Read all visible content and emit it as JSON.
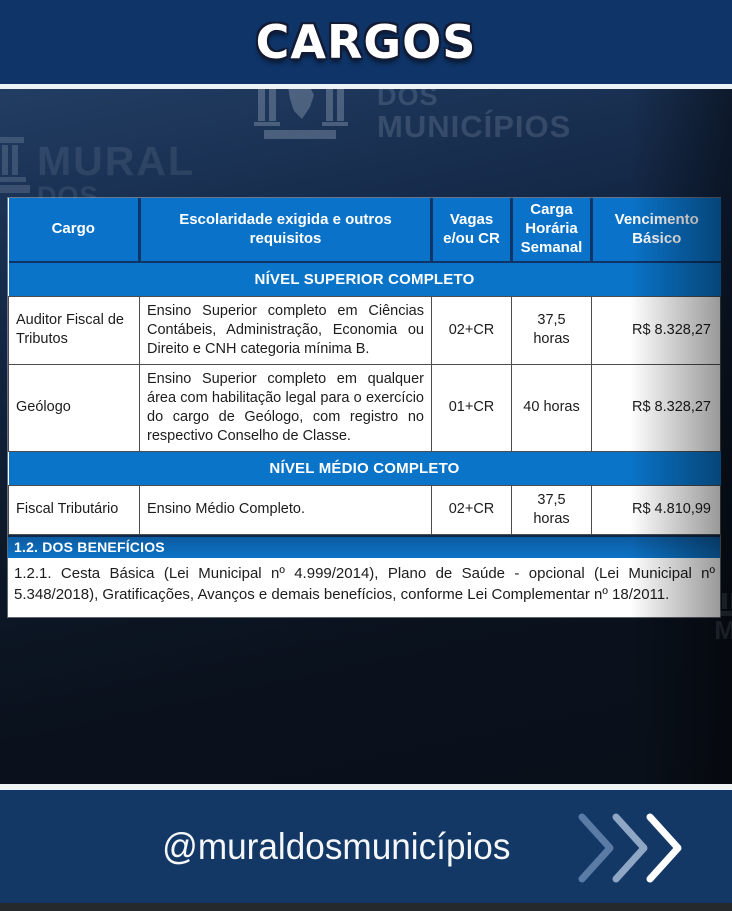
{
  "title": "CARGOS",
  "watermark": {
    "center_top": "DOS",
    "center_bottom": "MUNICÍPIOS",
    "left_top": "MURAL",
    "left_bottom": "DOS",
    "right_letter": "M"
  },
  "table": {
    "headers": [
      "Cargo",
      "Escolaridade exigida e outros requisitos",
      "Vagas e/ou CR",
      "Carga Horária Semanal",
      "Vencimento Básico"
    ],
    "sections": [
      {
        "title": "NÍVEL SUPERIOR COMPLETO",
        "rows": [
          {
            "cargo": "Auditor Fiscal de Tributos",
            "escolaridade": "Ensino Superior completo em Ciências Contábeis, Administração, Economia ou Direito e CNH categoria mínima B.",
            "vagas": "02+CR",
            "carga_horaria": "37,5 horas",
            "vencimento": "R$ 8.328,27"
          },
          {
            "cargo": "Geólogo",
            "escolaridade": "Ensino Superior completo em qualquer área com habilitação legal para o exercício do cargo de Geólogo, com registro no respectivo Conselho de Classe.",
            "vagas": "01+CR",
            "carga_horaria": "40 horas",
            "vencimento": "R$ 8.328,27"
          }
        ]
      },
      {
        "title": "NÍVEL MÉDIO COMPLETO",
        "rows": [
          {
            "cargo": "Fiscal Tributário",
            "escolaridade": "Ensino Médio Completo.",
            "vagas": "02+CR",
            "carga_horaria": "37,5 horas",
            "vencimento": "R$ 4.810,99"
          }
        ]
      }
    ]
  },
  "benefits": {
    "heading": "1.2. DOS BENEFÍCIOS",
    "text": "1.2.1. Cesta Básica (Lei Municipal nº 4.999/2014), Plano de Saúde - opcional (Lei Municipal nº 5.348/2018), Gratificações, Avanços e demais benefícios, conforme Lei Complementar nº 18/2011."
  },
  "footer": {
    "handle": "@muraldosmunicípios"
  },
  "colors": {
    "top_band": "#0e3468",
    "table_header_blue": "#0a73c9",
    "footer_navy": "#133866",
    "chevron_1": "#597ba6",
    "chevron_2": "#8fa6c5",
    "chevron_3": "#ffffff"
  }
}
